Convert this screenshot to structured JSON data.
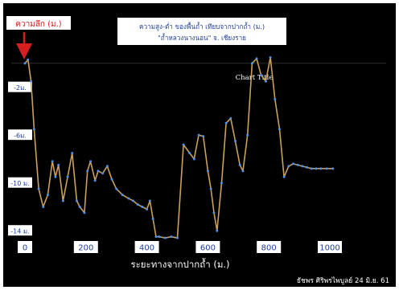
{
  "chart_data": {
    "type": "line",
    "title": "ความสูง-ต่ำ  ของพื้นถ้ำ เทียบจากปากถ้ำ (ม.)",
    "subtitle": "\"ถ้ำหลวงนางนอน\" จ. เชียงราย",
    "inner_title": "Chart Title",
    "ylabel": "ความลึก (ม.)",
    "xlabel": "ระยะทางจากปากถ้ำ (ม.)",
    "credit": "ธัชพร ศิริพรไพบูลย์ 24 มิ.ย. 61",
    "xlim": [
      0,
      1000
    ],
    "ylim": [
      -16,
      1
    ],
    "x_ticks": [
      {
        "value": 0,
        "label": "0"
      },
      {
        "value": 200,
        "label": "200"
      },
      {
        "value": 400,
        "label": "400"
      },
      {
        "value": 600,
        "label": "600"
      },
      {
        "value": 800,
        "label": "800"
      },
      {
        "value": 1000,
        "label": "1000"
      }
    ],
    "y_ticks": [
      {
        "value": -2,
        "label": "-2ม."
      },
      {
        "value": -6,
        "label": "-6ม."
      },
      {
        "value": -10,
        "label": "-10 ม."
      },
      {
        "value": -14,
        "label": "-14 ม."
      }
    ],
    "grid": false,
    "legend": "none",
    "colors": {
      "background": "#000000",
      "line": "#c9a15a",
      "marker": "#4f8fe6",
      "label_bg": "#ffffff",
      "label_text": "#1f3f9a",
      "arrow": "#d62020",
      "title_text": "#ffffff"
    },
    "series": [
      {
        "x": [
          0,
          10,
          20,
          30,
          45,
          60,
          75,
          90,
          100,
          110,
          125,
          140,
          155,
          170,
          180,
          195,
          205,
          215,
          230,
          240,
          255,
          270,
          285,
          300,
          320,
          340,
          355,
          370,
          385,
          400,
          410,
          420,
          430,
          440,
          460,
          480,
          500,
          520,
          540,
          555,
          570,
          585,
          600,
          610,
          620,
          630,
          645,
          660,
          675,
          690,
          705,
          715,
          730,
          745,
          760,
          775,
          790,
          805,
          820,
          835,
          850,
          865,
          880,
          895,
          910,
          925,
          940,
          955,
          970,
          990,
          1010
        ],
        "values": [
          0.0,
          0.3,
          -1.5,
          -5.5,
          -10.5,
          -12.0,
          -11.0,
          -8.2,
          -9.5,
          -8.5,
          -11.5,
          -9.5,
          -7.5,
          -11.5,
          -12.0,
          -12.5,
          -9.0,
          -8.2,
          -9.8,
          -9.0,
          -9.2,
          -8.6,
          -9.7,
          -10.5,
          -11.0,
          -11.3,
          -11.5,
          -11.8,
          -12.0,
          -12.2,
          -11.5,
          -13.0,
          -14.5,
          -14.5,
          -14.6,
          -14.5,
          -14.6,
          -6.8,
          -7.5,
          -8.0,
          -6.0,
          -6.1,
          -9.0,
          -10.5,
          -12.5,
          -14.0,
          -10.0,
          -5.0,
          -4.6,
          -6.5,
          -8.5,
          -9.0,
          -6.0,
          0.0,
          0.4,
          -1.0,
          -1.5,
          0.5,
          -3.0,
          -5.5,
          -9.5,
          -8.6,
          -8.4,
          -8.5,
          -8.6,
          -8.7,
          -8.8,
          -8.8,
          -8.8,
          -8.8,
          -8.8
        ]
      }
    ]
  }
}
